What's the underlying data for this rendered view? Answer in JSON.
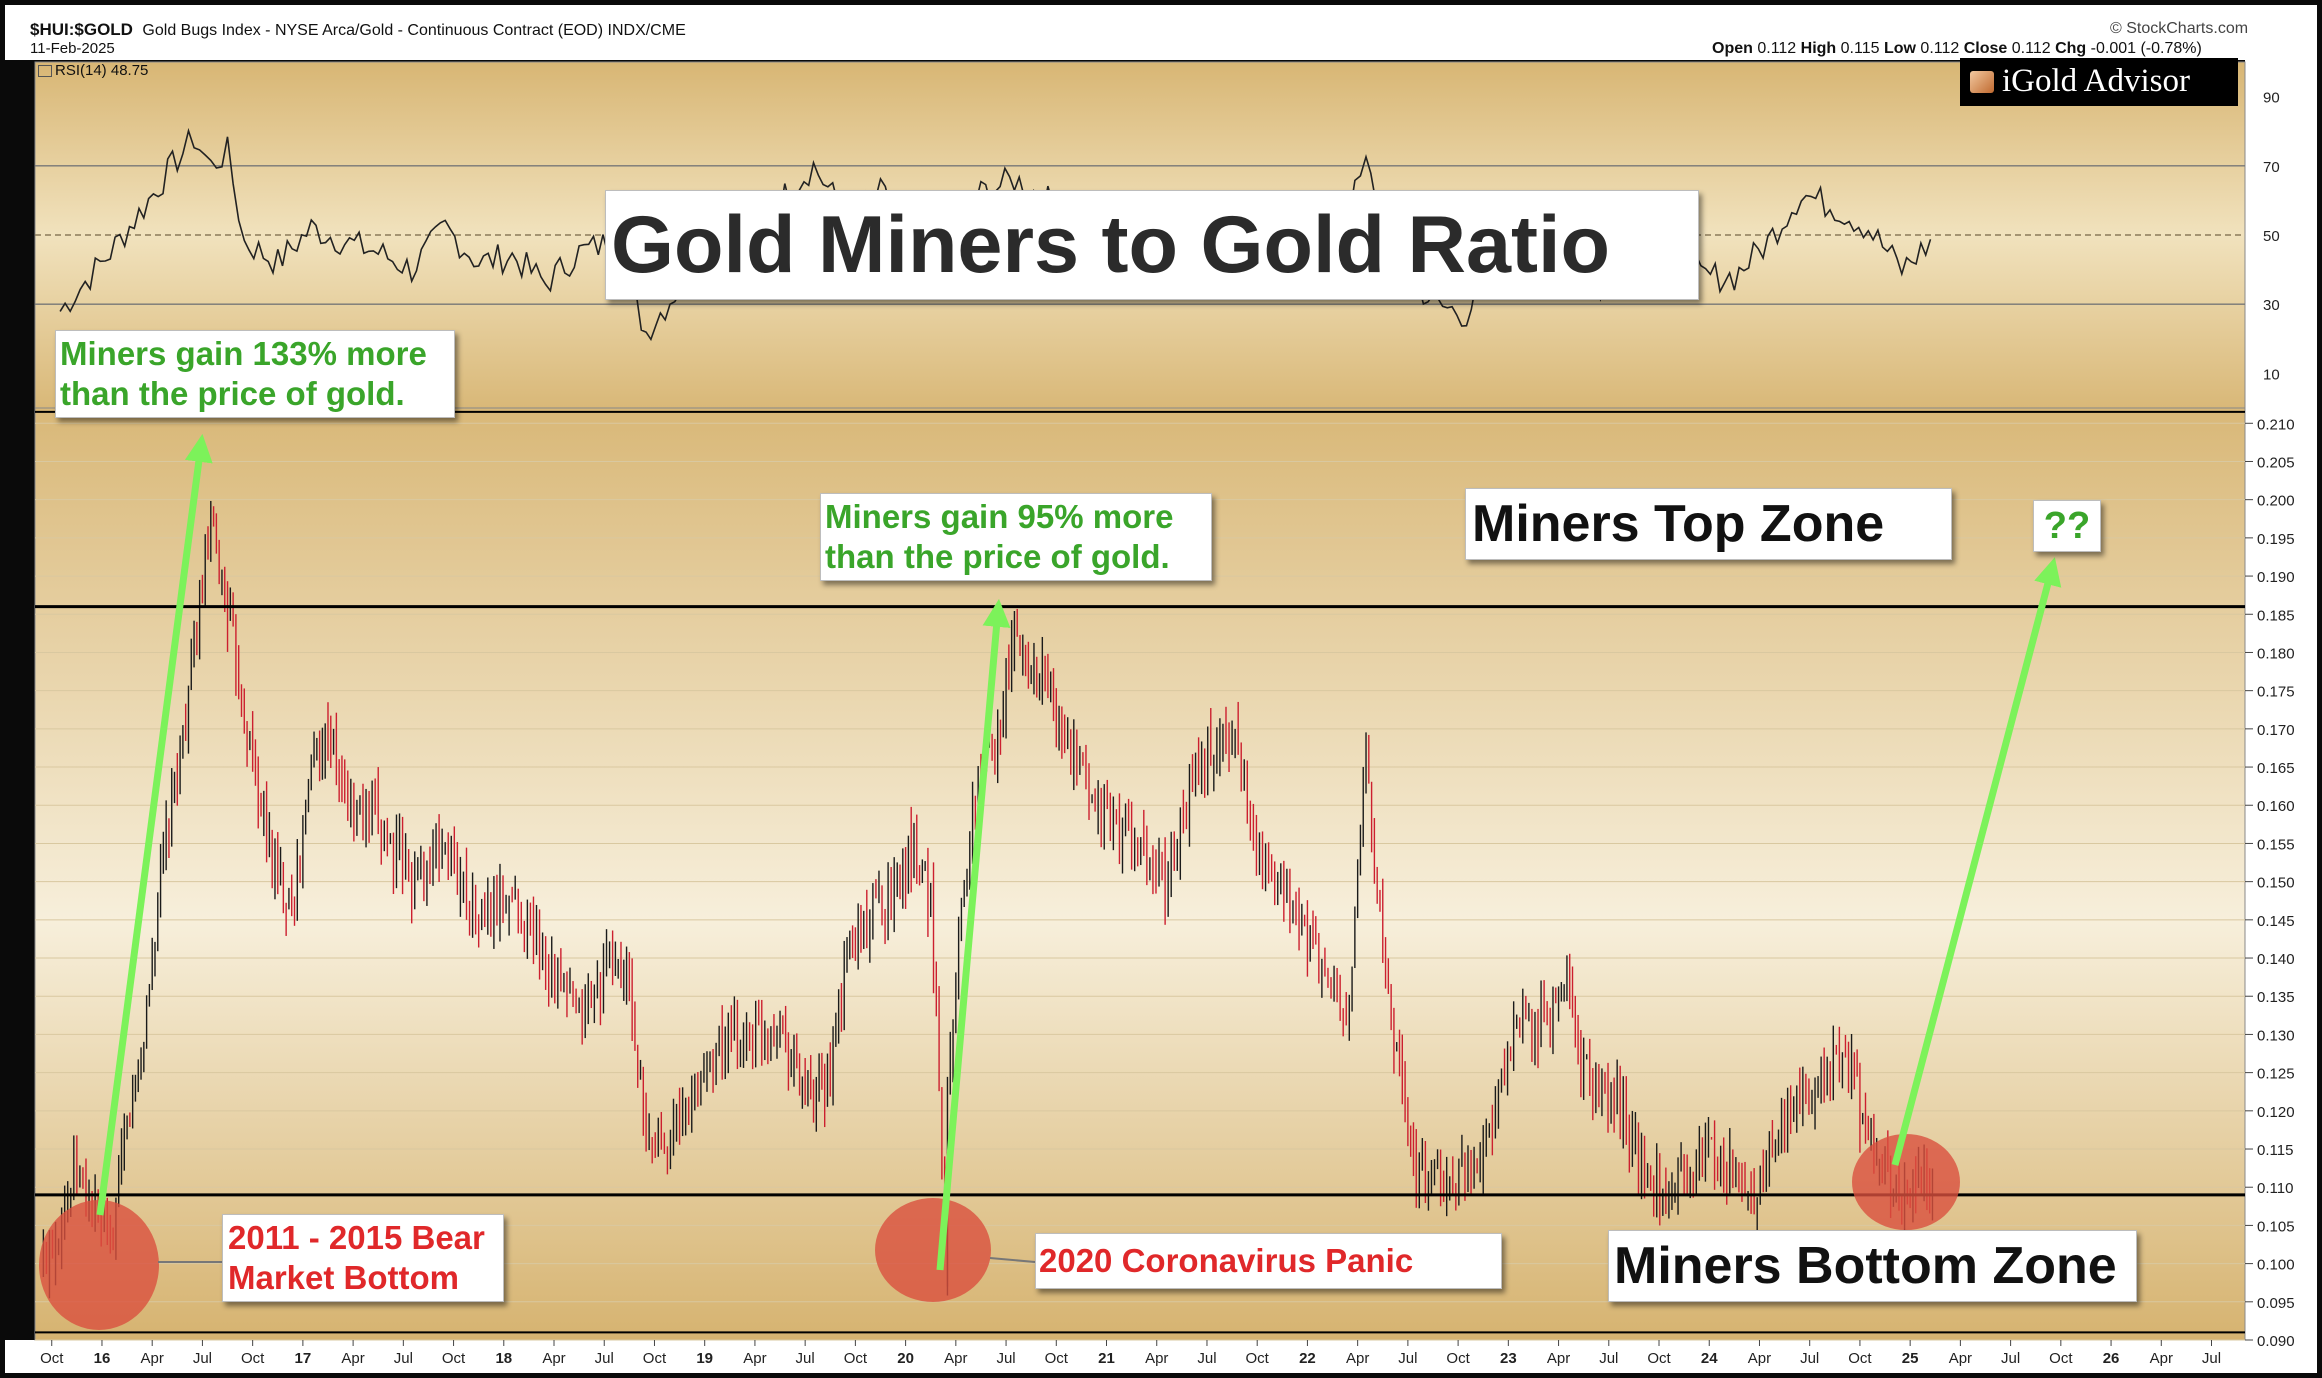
{
  "header": {
    "symbol": "$HUI:$GOLD",
    "description": "Gold Bugs Index - NYSE Arca/Gold - Continuous Contract (EOD) INDX/CME",
    "date": "11-Feb-2025",
    "source": "© StockCharts.com",
    "rsi_label": "RSI(14) 48.75",
    "ohlc": {
      "open_label": "Open",
      "open": "0.112",
      "high_label": "High",
      "high": "0.115",
      "low_label": "Low",
      "low": "0.112",
      "close_label": "Close",
      "close": "0.112",
      "chg_label": "Chg",
      "chg": "-0.001 (-0.78%)"
    }
  },
  "logo": {
    "brand_a": "iGold",
    "brand_b": "Advisor"
  },
  "annotations": {
    "title": "Gold Miners to Gold Ratio",
    "gain_2016_line1": "Miners gain 133% more",
    "gain_2016_line2": "than the price of gold.",
    "gain_2020_line1": "Miners gain 95% more",
    "gain_2020_line2": "than the price of gold.",
    "top_zone": "Miners Top Zone",
    "question": "??",
    "bear_bottom_line1": "2011 - 2015 Bear",
    "bear_bottom_line2": "Market Bottom",
    "corona": "2020 Coronavirus Panic",
    "bottom_zone": "Miners Bottom Zone"
  },
  "colors": {
    "up_candle": "#1a1a1a",
    "down_candle": "#cc1f2f",
    "arrow": "#7cf25a",
    "circle": "#d9503f",
    "panel_bg": "#ecd7a6",
    "gain_text": "#3aa52a",
    "red_text": "#e0282a"
  },
  "chart_data": [
    {
      "type": "line",
      "name": "RSI(14)",
      "x_ticks": [
        "Oct",
        "16",
        "Apr",
        "Jul",
        "Oct",
        "17",
        "Apr",
        "Jul",
        "Oct",
        "18",
        "Apr",
        "Jul",
        "Oct",
        "19",
        "Apr",
        "Jul",
        "Oct",
        "20",
        "Apr",
        "Jul",
        "Oct",
        "21",
        "Apr",
        "Jul",
        "Oct",
        "22",
        "Apr",
        "Jul",
        "Oct",
        "23",
        "Apr",
        "Jul",
        "Oct",
        "24",
        "Apr",
        "Jul",
        "Oct",
        "25",
        "Apr",
        "Jul",
        "Oct",
        "26",
        "Apr",
        "Jul"
      ],
      "ylim": [
        0,
        100
      ],
      "y_ticks": [
        10,
        30,
        50,
        70,
        90
      ],
      "reference_lines": [
        30,
        50,
        70
      ],
      "x": [
        "2015-10",
        "2016-01",
        "2016-03",
        "2016-05",
        "2016-06",
        "2016-07",
        "2016-08",
        "2016-09",
        "2016-11",
        "2017-01",
        "2017-03",
        "2017-05",
        "2017-07",
        "2017-09",
        "2017-11",
        "2018-01",
        "2018-03",
        "2018-05",
        "2018-07",
        "2018-09",
        "2018-11",
        "2019-01",
        "2019-03",
        "2019-05",
        "2019-07",
        "2019-09",
        "2019-11",
        "2020-01",
        "2020-03",
        "2020-05",
        "2020-07",
        "2020-09",
        "2020-11",
        "2021-01",
        "2021-03",
        "2021-05",
        "2021-07",
        "2021-09",
        "2021-11",
        "2022-01",
        "2022-03",
        "2022-04",
        "2022-06",
        "2022-08",
        "2022-10",
        "2022-12",
        "2023-02",
        "2023-04",
        "2023-06",
        "2023-08",
        "2023-10",
        "2023-12",
        "2024-02",
        "2024-04",
        "2024-06",
        "2024-08",
        "2024-10",
        "2024-12",
        "2025-02"
      ],
      "y": [
        28,
        45,
        58,
        72,
        78,
        70,
        74,
        48,
        42,
        52,
        48,
        45,
        40,
        52,
        42,
        44,
        36,
        45,
        48,
        22,
        35,
        50,
        46,
        60,
        70,
        55,
        62,
        52,
        50,
        62,
        66,
        60,
        52,
        55,
        48,
        50,
        44,
        42,
        45,
        40,
        58,
        70,
        42,
        30,
        27,
        45,
        60,
        40,
        34,
        46,
        50,
        38,
        38,
        48,
        62,
        58,
        52,
        40,
        49
      ]
    },
    {
      "type": "candlestick",
      "name": "$HUI:$GOLD",
      "ylim": [
        0.09,
        0.212
      ],
      "y_ticks": [
        0.09,
        0.095,
        0.1,
        0.105,
        0.11,
        0.115,
        0.12,
        0.125,
        0.13,
        0.135,
        0.14,
        0.145,
        0.15,
        0.155,
        0.16,
        0.165,
        0.17,
        0.175,
        0.18,
        0.185,
        0.19,
        0.195,
        0.2,
        0.205,
        0.21
      ],
      "y_tick_labels": [
        "0.090",
        "0.095",
        "0.100",
        "0.105",
        "0.110",
        "0.115",
        "0.120",
        "0.125",
        "0.130",
        "0.135",
        "0.140",
        "0.145",
        "0.150",
        "0.155",
        "0.160",
        "0.165",
        "0.170",
        "0.175",
        "0.180",
        "0.185",
        "0.190",
        "0.195",
        "0.200",
        "0.205",
        "0.210"
      ],
      "x_range": [
        "2015-09",
        "2026-09"
      ],
      "x": [
        "2015-09",
        "2015-11",
        "2016-01",
        "2016-02",
        "2016-03",
        "2016-04",
        "2016-05",
        "2016-06",
        "2016-07",
        "2016-08",
        "2016-09",
        "2016-10",
        "2016-11",
        "2016-12",
        "2017-01",
        "2017-02",
        "2017-03",
        "2017-05",
        "2017-07",
        "2017-09",
        "2017-11",
        "2018-01",
        "2018-03",
        "2018-05",
        "2018-07",
        "2018-08",
        "2018-09",
        "2018-11",
        "2019-01",
        "2019-03",
        "2019-05",
        "2019-06",
        "2019-07",
        "2019-08",
        "2019-09",
        "2019-10",
        "2019-12",
        "2020-01",
        "2020-02",
        "2020-03",
        "2020-03",
        "2020-04",
        "2020-05",
        "2020-06",
        "2020-07",
        "2020-08",
        "2020-09",
        "2020-10",
        "2020-12",
        "2021-02",
        "2021-04",
        "2021-06",
        "2021-08",
        "2021-10",
        "2021-12",
        "2022-01",
        "2022-03",
        "2022-04",
        "2022-05",
        "2022-06",
        "2022-07",
        "2022-09",
        "2022-11",
        "2023-01",
        "2023-03",
        "2023-04",
        "2023-05",
        "2023-07",
        "2023-09",
        "2023-11",
        "2024-01",
        "2024-03",
        "2024-05",
        "2024-07",
        "2024-09",
        "2024-10",
        "2024-11",
        "2024-12",
        "2025-01",
        "2025-02"
      ],
      "close": [
        0.1,
        0.112,
        0.102,
        0.118,
        0.13,
        0.15,
        0.165,
        0.18,
        0.196,
        0.186,
        0.172,
        0.16,
        0.15,
        0.148,
        0.165,
        0.17,
        0.16,
        0.158,
        0.15,
        0.155,
        0.145,
        0.148,
        0.14,
        0.132,
        0.14,
        0.136,
        0.115,
        0.118,
        0.128,
        0.13,
        0.132,
        0.125,
        0.12,
        0.125,
        0.14,
        0.145,
        0.15,
        0.155,
        0.148,
        0.1,
        0.125,
        0.15,
        0.165,
        0.17,
        0.182,
        0.178,
        0.176,
        0.168,
        0.16,
        0.155,
        0.15,
        0.165,
        0.17,
        0.15,
        0.145,
        0.14,
        0.132,
        0.168,
        0.14,
        0.125,
        0.112,
        0.11,
        0.115,
        0.13,
        0.132,
        0.138,
        0.125,
        0.122,
        0.11,
        0.112,
        0.115,
        0.108,
        0.118,
        0.125,
        0.126,
        0.115,
        0.112,
        0.108,
        0.11,
        0.112
      ],
      "top_zone_level": 0.186,
      "bottom_zone_level": 0.109,
      "extra_reference_lines": [
        0.2115,
        0.091
      ]
    }
  ]
}
